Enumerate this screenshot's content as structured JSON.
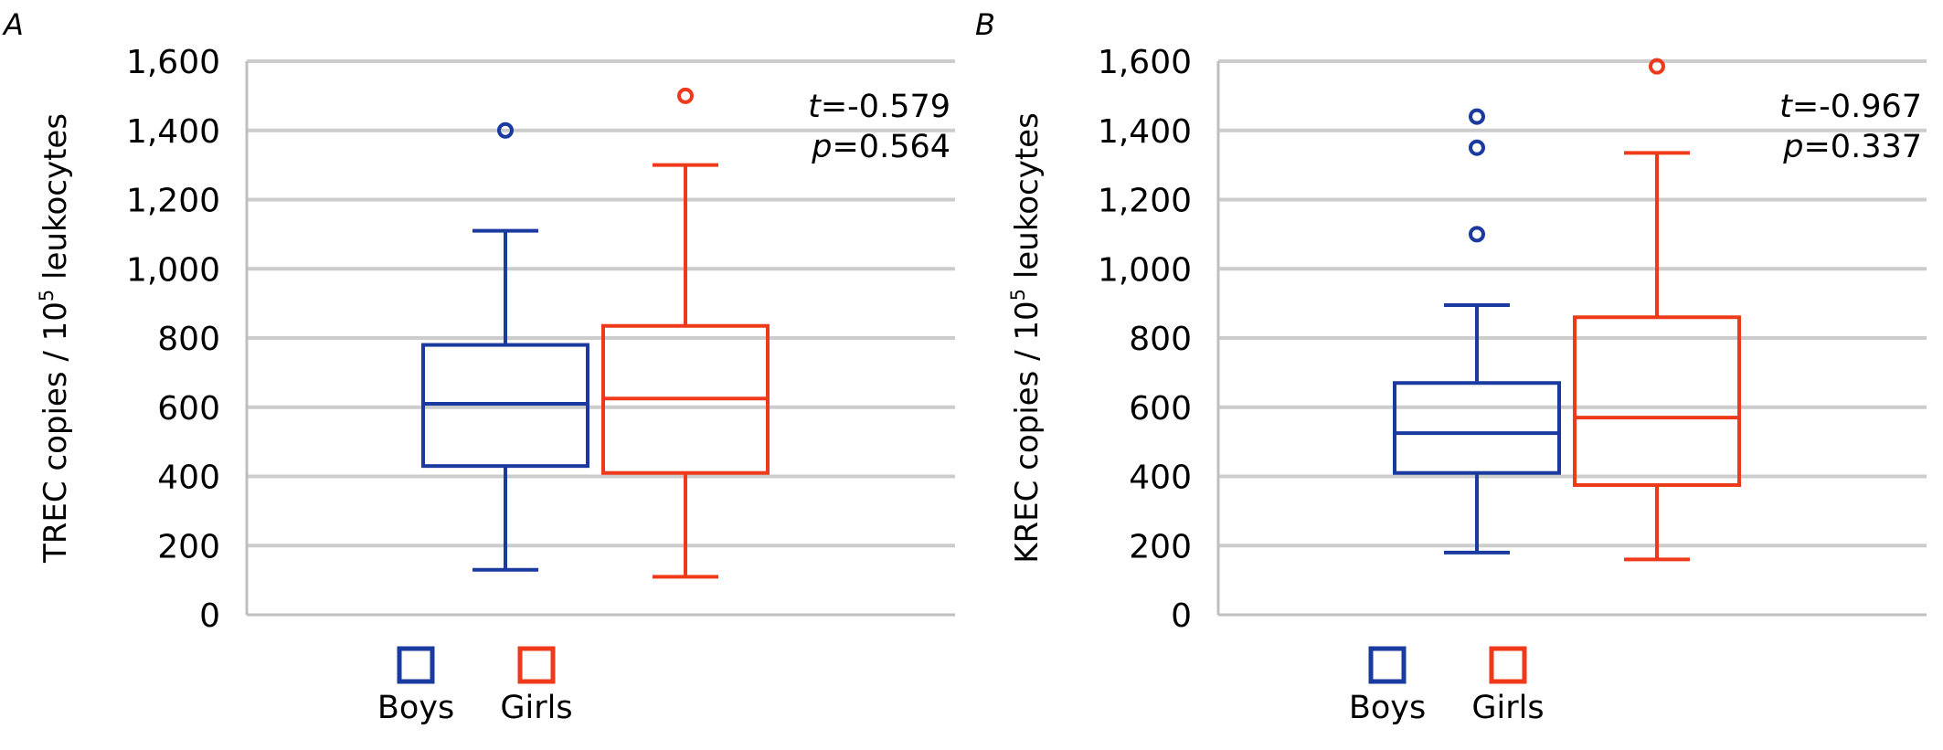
{
  "colors": {
    "boys": "#1a3aa0",
    "girls": "#ee3a1a",
    "grid": "#cccccc",
    "axis": "#bfbfbf"
  },
  "chart_data": [
    {
      "type": "boxplot",
      "panel_label": "A",
      "ylabel_main": "TREC copies / 10",
      "ylabel_sup": "5",
      "ylabel_tail": " leukocytes",
      "ylim": [
        0,
        1600
      ],
      "y_ticks": [
        0,
        200,
        400,
        600,
        800,
        1000,
        1200,
        1400,
        1600
      ],
      "y_tick_labels": [
        "0",
        "200",
        "400",
        "600",
        "800",
        "1,000",
        "1,200",
        "1,400",
        "1,600"
      ],
      "grid": true,
      "stat_t_label": "t",
      "stat_t_value": "=-0.579",
      "stat_p_label": "p",
      "stat_p_value": "=0.564",
      "legend": [
        "Boys",
        "Girls"
      ],
      "series": [
        {
          "name": "Boys",
          "color_key": "boys",
          "whisker_low": 130,
          "q1": 430,
          "median": 610,
          "q3": 780,
          "whisker_high": 1110,
          "outliers": [
            1400
          ]
        },
        {
          "name": "Girls",
          "color_key": "girls",
          "whisker_low": 110,
          "q1": 410,
          "median": 625,
          "q3": 835,
          "whisker_high": 1300,
          "outliers": [
            1500
          ]
        }
      ]
    },
    {
      "type": "boxplot",
      "panel_label": "B",
      "ylabel_main": "KREC copies / 10",
      "ylabel_sup": "5",
      "ylabel_tail": " leukocytes",
      "ylim": [
        0,
        1600
      ],
      "y_ticks": [
        0,
        200,
        400,
        600,
        800,
        1000,
        1200,
        1400,
        1600
      ],
      "y_tick_labels": [
        "0",
        "200",
        "400",
        "600",
        "800",
        "1,000",
        "1,200",
        "1,400",
        "1,600"
      ],
      "grid": true,
      "stat_t_label": "t",
      "stat_t_value": "=-0.967",
      "stat_p_label": "p",
      "stat_p_value": "=0.337",
      "legend": [
        "Boys",
        "Girls"
      ],
      "series": [
        {
          "name": "Boys",
          "color_key": "boys",
          "whisker_low": 180,
          "q1": 410,
          "median": 525,
          "q3": 670,
          "whisker_high": 895,
          "outliers": [
            1100,
            1350,
            1440
          ]
        },
        {
          "name": "Girls",
          "color_key": "girls",
          "whisker_low": 160,
          "q1": 375,
          "median": 570,
          "q3": 860,
          "whisker_high": 1335,
          "outliers": [
            1585
          ]
        }
      ]
    }
  ]
}
